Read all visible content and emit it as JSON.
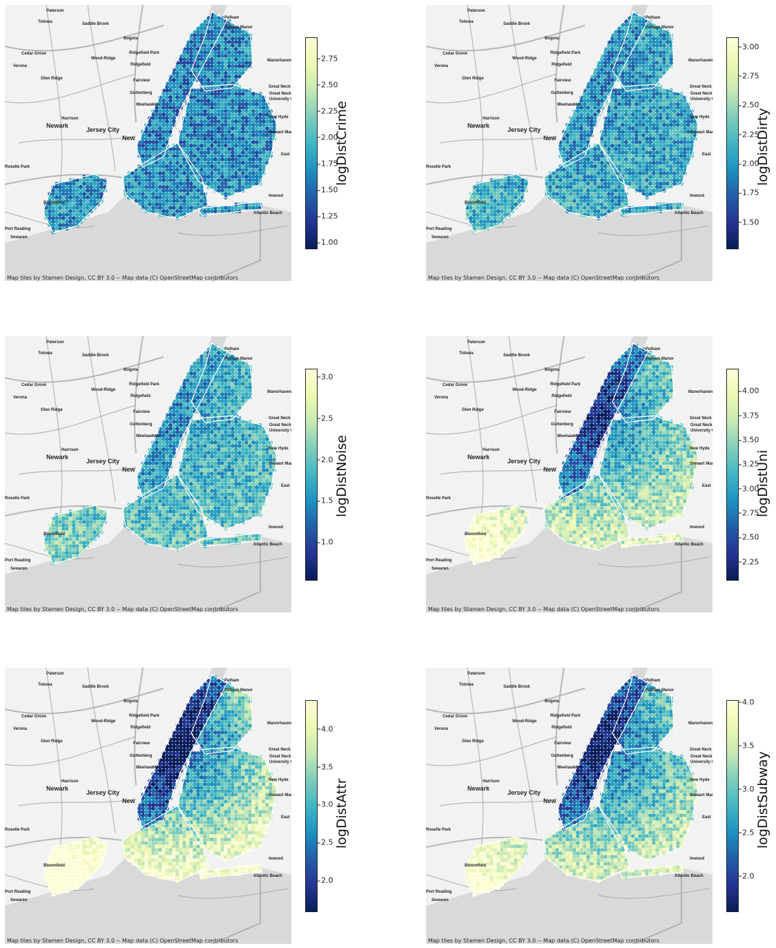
{
  "attribution": "Map tiles by Stamen Design, CC BY 3.0 -- Map data (C) OpenStreetMap contributors",
  "places": [
    {
      "name": "Paterson",
      "size": "small"
    },
    {
      "name": "Totowa",
      "size": "small"
    },
    {
      "name": "Saddle Brook",
      "size": "small"
    },
    {
      "name": "Pelham",
      "size": "small"
    },
    {
      "name": "Pelham Manor",
      "size": "small"
    },
    {
      "name": "Bogota",
      "size": "small"
    },
    {
      "name": "Cedar Grove",
      "size": "small"
    },
    {
      "name": "Wood-Ridge",
      "size": "small"
    },
    {
      "name": "Ridgefield Park",
      "size": "small"
    },
    {
      "name": "Manorhaven",
      "size": "small"
    },
    {
      "name": "Verona",
      "size": "small"
    },
    {
      "name": "Ridgefield",
      "size": "small"
    },
    {
      "name": "Glen Ridge",
      "size": "small"
    },
    {
      "name": "Fairview",
      "size": "small"
    },
    {
      "name": "Great Neck",
      "size": "small"
    },
    {
      "name": "Guttenberg",
      "size": "small"
    },
    {
      "name": "Great Neck Plaza",
      "size": "small"
    },
    {
      "name": "Weehawken",
      "size": "small"
    },
    {
      "name": "University Gardens",
      "size": "small"
    },
    {
      "name": "Harrison",
      "size": "small"
    },
    {
      "name": "Newark",
      "size": "large"
    },
    {
      "name": "Jersey City",
      "size": "large"
    },
    {
      "name": "New Hyde",
      "size": "small"
    },
    {
      "name": "Stewart Manor",
      "size": "small"
    },
    {
      "name": "East",
      "size": "small"
    },
    {
      "name": "Roselle Park",
      "size": "small"
    },
    {
      "name": "Inwood",
      "size": "small"
    },
    {
      "name": "Bloomfield",
      "size": "small"
    },
    {
      "name": "Atlantic Beach",
      "size": "small"
    },
    {
      "name": "Port Reading",
      "size": "small"
    },
    {
      "name": "Sewaren",
      "size": "small"
    },
    {
      "name": "New",
      "size": "large"
    }
  ],
  "colors": {
    "background": "#ffffff",
    "land": "#f2f2f2",
    "water": "#d9d9d9",
    "roads": "#a6a6a6",
    "boundaries": "#ffffff",
    "colormap": [
      "#081d58",
      "#253494",
      "#225ea8",
      "#1d91c0",
      "#41b6c4",
      "#7fcdbb",
      "#c7e9b4",
      "#edf8b1",
      "#ffffd9"
    ]
  },
  "panels": [
    {
      "id": "crime",
      "label": "logDistCrime",
      "vmin": 0.95,
      "vmax": 2.95,
      "ticks": [
        "1.00",
        "1.25",
        "1.50",
        "1.75",
        "2.00",
        "2.25",
        "2.50",
        "2.75"
      ],
      "tickValues": [
        1.0,
        1.25,
        1.5,
        1.75,
        2.0,
        2.25,
        2.5,
        2.75
      ],
      "meanLevel": 0.35,
      "gradient": 0.05
    },
    {
      "id": "dirty",
      "label": "logDistDirty",
      "vmin": 1.28,
      "vmax": 3.08,
      "ticks": [
        "1.50",
        "1.75",
        "2.00",
        "2.25",
        "2.50",
        "2.75",
        "3.00"
      ],
      "tickValues": [
        1.5,
        1.75,
        2.0,
        2.25,
        2.5,
        2.75,
        3.0
      ],
      "meanLevel": 0.42,
      "gradient": 0.08
    },
    {
      "id": "noise",
      "label": "logDistNoise",
      "vmin": 0.55,
      "vmax": 3.1,
      "ticks": [
        "1.0",
        "1.5",
        "2.0",
        "2.5",
        "3.0"
      ],
      "tickValues": [
        1.0,
        1.5,
        2.0,
        2.5,
        3.0
      ],
      "meanLevel": 0.48,
      "gradient": 0.15
    },
    {
      "id": "uni",
      "label": "logDistUni",
      "vmin": 2.07,
      "vmax": 4.23,
      "ticks": [
        "2.25",
        "2.50",
        "2.75",
        "3.00",
        "3.25",
        "3.50",
        "3.75",
        "4.00"
      ],
      "tickValues": [
        2.25,
        2.5,
        2.75,
        3.0,
        3.25,
        3.5,
        3.75,
        4.0
      ],
      "meanLevel": 0.55,
      "gradient": 0.55
    },
    {
      "id": "attr",
      "label": "logDistAttr",
      "vmin": 1.6,
      "vmax": 4.38,
      "ticks": [
        "2.0",
        "2.5",
        "3.0",
        "3.5",
        "4.0"
      ],
      "tickValues": [
        2.0,
        2.5,
        3.0,
        3.5,
        4.0
      ],
      "meanLevel": 0.6,
      "gradient": 0.75
    },
    {
      "id": "subway",
      "label": "logDistSubway",
      "vmin": 1.6,
      "vmax": 4.02,
      "ticks": [
        "2.0",
        "2.5",
        "3.0",
        "3.5",
        "4.0"
      ],
      "tickValues": [
        2.0,
        2.5,
        3.0,
        3.5,
        4.0
      ],
      "meanLevel": 0.45,
      "gradient": 0.6
    }
  ]
}
